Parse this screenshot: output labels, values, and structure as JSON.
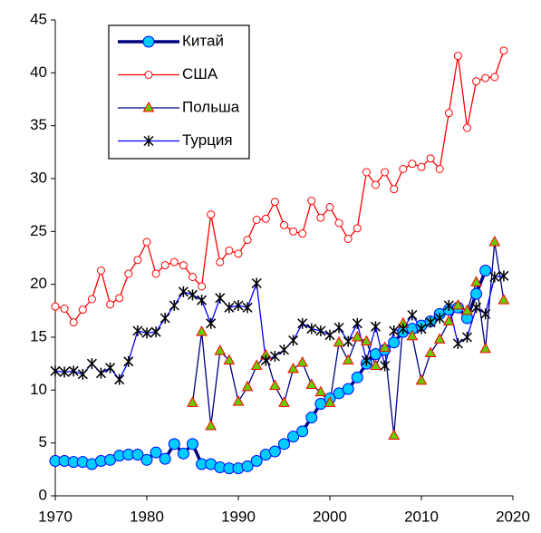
{
  "chart_data": {
    "type": "line",
    "xlim": [
      1970,
      2020
    ],
    "xticks": [
      1970,
      1980,
      1990,
      2000,
      2010,
      2020
    ],
    "ylim": [
      0,
      45
    ],
    "yticks": [
      0,
      5,
      10,
      15,
      20,
      25,
      30,
      35,
      40,
      45
    ],
    "grid": false,
    "legend": "upper left",
    "series": [
      {
        "name": "Китай",
        "color": "#000080",
        "marker": "circle",
        "marker_color": "#00ccff",
        "line_width": 3.5,
        "x": [
          1970,
          1971,
          1972,
          1973,
          1974,
          1975,
          1976,
          1977,
          1978,
          1979,
          1980,
          1981,
          1982,
          1983,
          1984,
          1985,
          1986,
          1987,
          1988,
          1989,
          1990,
          1991,
          1992,
          1993,
          1994,
          1995,
          1996,
          1997,
          1998,
          1999,
          2000,
          2001,
          2002,
          2003,
          2004,
          2005,
          2006,
          2007,
          2008,
          2009,
          2010,
          2011,
          2012,
          2013,
          2014,
          2015,
          2016,
          2017
        ],
        "values": [
          3.3,
          3.3,
          3.2,
          3.2,
          3.0,
          3.3,
          3.4,
          3.8,
          3.9,
          3.9,
          3.4,
          4.1,
          3.5,
          4.9,
          4.0,
          4.9,
          3.0,
          3.0,
          2.7,
          2.6,
          2.6,
          2.8,
          3.3,
          3.9,
          4.2,
          4.9,
          5.6,
          6.1,
          7.4,
          8.7,
          9.2,
          9.7,
          10.1,
          11.2,
          12.5,
          13.4,
          13.8,
          14.5,
          15.5,
          15.8,
          16.1,
          16.5,
          17.2,
          17.6,
          17.8,
          16.8,
          19.1,
          21.3
        ]
      },
      {
        "name": "США",
        "color": "#ff0000",
        "marker": "circle",
        "marker_color": "#ffffff",
        "line_width": 1.3,
        "x": [
          1970,
          1971,
          1972,
          1973,
          1974,
          1975,
          1976,
          1977,
          1978,
          1979,
          1980,
          1981,
          1982,
          1983,
          1984,
          1985,
          1986,
          1987,
          1988,
          1989,
          1990,
          1991,
          1992,
          1993,
          1994,
          1995,
          1996,
          1997,
          1998,
          1999,
          2000,
          2001,
          2002,
          2003,
          2004,
          2005,
          2006,
          2007,
          2008,
          2009,
          2010,
          2011,
          2012,
          2013,
          2014,
          2015,
          2016,
          2017,
          2018,
          2019
        ],
        "values": [
          17.9,
          17.7,
          16.4,
          17.6,
          18.6,
          21.3,
          18.1,
          18.7,
          21.0,
          22.3,
          24.0,
          21.0,
          21.8,
          22.1,
          21.8,
          20.7,
          19.8,
          26.6,
          22.1,
          23.2,
          22.9,
          24.2,
          26.1,
          26.2,
          27.8,
          25.6,
          25.0,
          24.8,
          27.9,
          26.3,
          27.3,
          25.8,
          24.3,
          25.3,
          30.6,
          29.4,
          30.6,
          29.0,
          30.9,
          31.4,
          31.1,
          31.9,
          30.9,
          36.2,
          41.6,
          34.8,
          39.2,
          39.5,
          39.6,
          42.1
        ]
      },
      {
        "name": "Польша",
        "color": "#000080",
        "marker": "triangle",
        "marker_color": "#66cc00",
        "line_width": 1.3,
        "x": [
          1985,
          1986,
          1987,
          1988,
          1989,
          1990,
          1991,
          1992,
          1993,
          1994,
          1995,
          1996,
          1997,
          1998,
          1999,
          2000,
          2001,
          2002,
          2003,
          2004,
          2005,
          2006,
          2007,
          2008,
          2009,
          2010,
          2011,
          2012,
          2013,
          2014,
          2015,
          2016,
          2017,
          2018,
          2019
        ],
        "values": [
          8.8,
          15.5,
          6.6,
          13.7,
          12.8,
          8.9,
          10.3,
          12.3,
          13.3,
          10.4,
          8.8,
          12.0,
          12.6,
          10.5,
          9.8,
          8.8,
          14.5,
          12.8,
          15.0,
          14.6,
          12.3,
          14.0,
          5.7,
          16.3,
          15.1,
          10.9,
          13.5,
          14.8,
          16.5,
          18.0,
          17.5,
          20.2,
          13.9,
          24.0,
          18.5
        ]
      },
      {
        "name": "Турция",
        "color": "#0000ff",
        "marker": "asterisk",
        "marker_color": "#000000",
        "line_width": 1.3,
        "x": [
          1970,
          1971,
          1972,
          1973,
          1974,
          1975,
          1976,
          1977,
          1978,
          1979,
          1980,
          1981,
          1982,
          1983,
          1984,
          1985,
          1986,
          1987,
          1988,
          1989,
          1990,
          1991,
          1992,
          1993,
          1994,
          1995,
          1996,
          1997,
          1998,
          1999,
          2000,
          2001,
          2002,
          2003,
          2004,
          2005,
          2006,
          2007,
          2008,
          2009,
          2010,
          2011,
          2012,
          2013,
          2014,
          2015,
          2016,
          2017,
          2018,
          2019
        ],
        "values": [
          11.8,
          11.7,
          11.8,
          11.5,
          12.5,
          11.6,
          12.1,
          11.0,
          12.7,
          15.6,
          15.4,
          15.5,
          16.8,
          18.0,
          19.3,
          19.0,
          18.5,
          16.3,
          18.7,
          17.8,
          18.0,
          17.8,
          20.1,
          12.8,
          13.2,
          13.8,
          14.7,
          16.3,
          15.8,
          15.6,
          15.2,
          15.9,
          14.6,
          16.3,
          12.8,
          16.0,
          12.3,
          15.6,
          15.8,
          17.1,
          15.8,
          16.4,
          16.8,
          18.0,
          14.4,
          15.0,
          17.8,
          17.2,
          20.7,
          20.8
        ]
      }
    ]
  }
}
